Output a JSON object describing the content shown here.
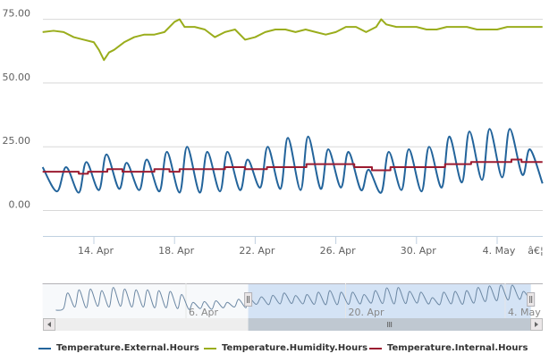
{
  "chart_data": {
    "type": "line",
    "title": "",
    "xlabel": "",
    "ylabel": "",
    "ylim": [
      -10,
      82.5
    ],
    "grid": true,
    "y_ticks": [
      "75.00",
      "50.00",
      "25.00",
      "0.00"
    ],
    "y_tick_values": [
      75,
      50,
      25,
      0
    ],
    "x_ticks": [
      "14. Apr",
      "18. Apr",
      "22. Apr",
      "26. Apr",
      "30. Apr",
      "4. May",
      "â€¦"
    ],
    "x_tick_dates": [
      "Apr 14 00:00",
      "Apr 18 00:00",
      "Apr 22 00:00",
      "Apr 26 00:00",
      "Apr 30 00:00",
      "May 4 00:00",
      "May 6 00:00"
    ],
    "x_range": [
      "Apr 11 11:00",
      "May 6 06:00"
    ],
    "legend_position": "bottom",
    "series": [
      {
        "name": "Temperature.External.Hours",
        "color": "#23649b",
        "points": [
          [
            "Apr 11 11:00",
            17
          ],
          [
            "Apr 12 04:00",
            7.5
          ],
          [
            "Apr 12 15:00",
            17
          ],
          [
            "Apr 13 06:00",
            7
          ],
          [
            "Apr 13 15:00",
            19
          ],
          [
            "Apr 14 06:00",
            8
          ],
          [
            "Apr 14 15:00",
            22
          ],
          [
            "Apr 15 06:00",
            8.5
          ],
          [
            "Apr 15 15:00",
            18.7
          ],
          [
            "Apr 16 06:00",
            8
          ],
          [
            "Apr 16 15:00",
            20
          ],
          [
            "Apr 17 06:00",
            7.5
          ],
          [
            "Apr 17 15:00",
            23
          ],
          [
            "Apr 18 06:00",
            7
          ],
          [
            "Apr 18 15:00",
            25
          ],
          [
            "Apr 19 06:00",
            7
          ],
          [
            "Apr 19 15:00",
            23
          ],
          [
            "Apr 20 06:00",
            7.5
          ],
          [
            "Apr 20 15:00",
            23
          ],
          [
            "Apr 21 06:00",
            8
          ],
          [
            "Apr 21 15:00",
            20
          ],
          [
            "Apr 22 06:00",
            9
          ],
          [
            "Apr 22 15:00",
            25
          ],
          [
            "Apr 23 06:00",
            8.5
          ],
          [
            "Apr 23 15:00",
            28.5
          ],
          [
            "Apr 24 06:00",
            8
          ],
          [
            "Apr 24 15:00",
            29
          ],
          [
            "Apr 25 06:00",
            8.5
          ],
          [
            "Apr 25 15:00",
            24
          ],
          [
            "Apr 26 06:00",
            9
          ],
          [
            "Apr 26 15:00",
            23
          ],
          [
            "Apr 27 06:00",
            8
          ],
          [
            "Apr 27 15:00",
            16
          ],
          [
            "Apr 28 06:00",
            7
          ],
          [
            "Apr 28 15:00",
            23
          ],
          [
            "Apr 29 06:00",
            8
          ],
          [
            "Apr 29 15:00",
            24
          ],
          [
            "Apr 30 06:00",
            7.5
          ],
          [
            "Apr 30 15:00",
            25
          ],
          [
            "May 1 06:00",
            9
          ],
          [
            "May 1 15:00",
            29
          ],
          [
            "May 2 06:00",
            11
          ],
          [
            "May 2 15:00",
            31
          ],
          [
            "May 3 06:00",
            12
          ],
          [
            "May 3 15:00",
            32
          ],
          [
            "May 4 06:00",
            13
          ],
          [
            "May 4 15:00",
            32
          ],
          [
            "May 5 06:00",
            14
          ],
          [
            "May 5 15:00",
            24
          ],
          [
            "May 6 06:00",
            10.6
          ]
        ]
      },
      {
        "name": "Temperature.Humidity.Hours",
        "color": "#9aad1c",
        "points": [
          [
            "Apr 11 11:00",
            70
          ],
          [
            "Apr 12 00:00",
            70.5
          ],
          [
            "Apr 12 12:00",
            70
          ],
          [
            "Apr 13 00:00",
            68
          ],
          [
            "Apr 13 12:00",
            67
          ],
          [
            "Apr 14 00:00",
            66
          ],
          [
            "Apr 14 06:00",
            63
          ],
          [
            "Apr 14 12:00",
            59
          ],
          [
            "Apr 14 18:00",
            62
          ],
          [
            "Apr 15 00:00",
            63
          ],
          [
            "Apr 15 12:00",
            66
          ],
          [
            "Apr 16 00:00",
            68
          ],
          [
            "Apr 16 12:00",
            69
          ],
          [
            "Apr 17 00:00",
            69
          ],
          [
            "Apr 17 12:00",
            70
          ],
          [
            "Apr 18 00:00",
            74
          ],
          [
            "Apr 18 06:00",
            75
          ],
          [
            "Apr 18 12:00",
            72
          ],
          [
            "Apr 19 00:00",
            72
          ],
          [
            "Apr 19 12:00",
            71
          ],
          [
            "Apr 20 00:00",
            68
          ],
          [
            "Apr 20 12:00",
            70
          ],
          [
            "Apr 21 00:00",
            71
          ],
          [
            "Apr 21 12:00",
            67
          ],
          [
            "Apr 22 00:00",
            68
          ],
          [
            "Apr 22 12:00",
            70
          ],
          [
            "Apr 23 00:00",
            71
          ],
          [
            "Apr 23 12:00",
            71
          ],
          [
            "Apr 24 00:00",
            70
          ],
          [
            "Apr 24 12:00",
            71
          ],
          [
            "Apr 25 00:00",
            70
          ],
          [
            "Apr 25 12:00",
            69
          ],
          [
            "Apr 26 00:00",
            70
          ],
          [
            "Apr 26 12:00",
            72
          ],
          [
            "Apr 27 00:00",
            72
          ],
          [
            "Apr 27 12:00",
            70
          ],
          [
            "Apr 28 00:00",
            72
          ],
          [
            "Apr 28 06:00",
            75
          ],
          [
            "Apr 28 12:00",
            73
          ],
          [
            "Apr 29 00:00",
            72
          ],
          [
            "Apr 29 12:00",
            72
          ],
          [
            "Apr 30 00:00",
            72
          ],
          [
            "Apr 30 12:00",
            71
          ],
          [
            "May 1 00:00",
            71
          ],
          [
            "May 1 12:00",
            72
          ],
          [
            "May 2 00:00",
            72
          ],
          [
            "May 2 12:00",
            72
          ],
          [
            "May 3 00:00",
            71
          ],
          [
            "May 3 12:00",
            71
          ],
          [
            "May 4 00:00",
            71
          ],
          [
            "May 4 12:00",
            72
          ],
          [
            "May 5 00:00",
            72
          ],
          [
            "May 5 12:00",
            72
          ],
          [
            "May 6 06:00",
            72
          ]
        ]
      },
      {
        "name": "Temperature.Internal.Hours",
        "color": "#9b1b30",
        "points": [
          [
            "Apr 11 11:00",
            15.2
          ],
          [
            "Apr 13 06:00",
            14.4
          ],
          [
            "Apr 13 17:00",
            15.2
          ],
          [
            "Apr 14 16:00",
            16.2
          ],
          [
            "Apr 15 10:00",
            15.2
          ],
          [
            "Apr 17 00:00",
            16.2
          ],
          [
            "Apr 17 18:00",
            15.2
          ],
          [
            "Apr 18 06:00",
            16.2
          ],
          [
            "Apr 20 12:00",
            17
          ],
          [
            "Apr 21 12:00",
            16.2
          ],
          [
            "Apr 22 14:00",
            17
          ],
          [
            "Apr 24 13:00",
            18.2
          ],
          [
            "Apr 26 22:00",
            17
          ],
          [
            "Apr 27 19:00",
            15.8
          ],
          [
            "Apr 28 17:00",
            17
          ],
          [
            "May 1 10:00",
            18.2
          ],
          [
            "May 2 17:00",
            19
          ],
          [
            "May 4 17:00",
            20
          ],
          [
            "May 5 05:00",
            19
          ],
          [
            "May 6 06:00",
            19
          ]
        ]
      }
    ],
    "navigator": {
      "x_ticks": [
        "6. Apr",
        "20. Apr",
        "4. May"
      ],
      "x_tick_dates": [
        "Apr 6 00:00",
        "Apr 20 00:00",
        "May 4 00:00"
      ],
      "x_range": [
        "Mar 24 10:00",
        "May 6 06:00"
      ],
      "selected_range": [
        "Apr 11 11:00",
        "May 6 06:00"
      ],
      "color": "#6b87a3",
      "earlier_points": [
        [
          "Mar 25 14:00",
          0
        ],
        [
          "Mar 26 06:00",
          2
        ],
        [
          "Mar 26 15:00",
          22
        ],
        [
          "Mar 27 06:00",
          4
        ],
        [
          "Mar 27 15:00",
          26
        ],
        [
          "Mar 28 06:00",
          3
        ],
        [
          "Mar 28 15:00",
          27
        ],
        [
          "Mar 29 06:00",
          5
        ],
        [
          "Mar 29 15:00",
          25
        ],
        [
          "Mar 30 06:00",
          4
        ],
        [
          "Mar 30 15:00",
          29
        ],
        [
          "Mar 31 06:00",
          5
        ],
        [
          "Mar 31 15:00",
          27
        ],
        [
          "Apr 1 06:00",
          4
        ],
        [
          "Apr 1 15:00",
          26
        ],
        [
          "Apr 2 06:00",
          4
        ],
        [
          "Apr 2 15:00",
          26
        ],
        [
          "Apr 3 06:00",
          3
        ],
        [
          "Apr 3 15:00",
          25
        ],
        [
          "Apr 4 06:00",
          3
        ],
        [
          "Apr 4 15:00",
          24
        ],
        [
          "Apr 5 06:00",
          2
        ],
        [
          "Apr 5 15:00",
          20
        ],
        [
          "Apr 6 06:00",
          1
        ],
        [
          "Apr 6 15:00",
          10
        ],
        [
          "Apr 7 06:00",
          2
        ],
        [
          "Apr 7 15:00",
          11
        ],
        [
          "Apr 8 06:00",
          1
        ],
        [
          "Apr 8 15:00",
          12
        ],
        [
          "Apr 9 06:00",
          3
        ],
        [
          "Apr 9 15:00",
          10
        ],
        [
          "Apr 10 06:00",
          4
        ],
        [
          "Apr 10 15:00",
          14
        ],
        [
          "Apr 11 06:00",
          3
        ]
      ]
    }
  }
}
